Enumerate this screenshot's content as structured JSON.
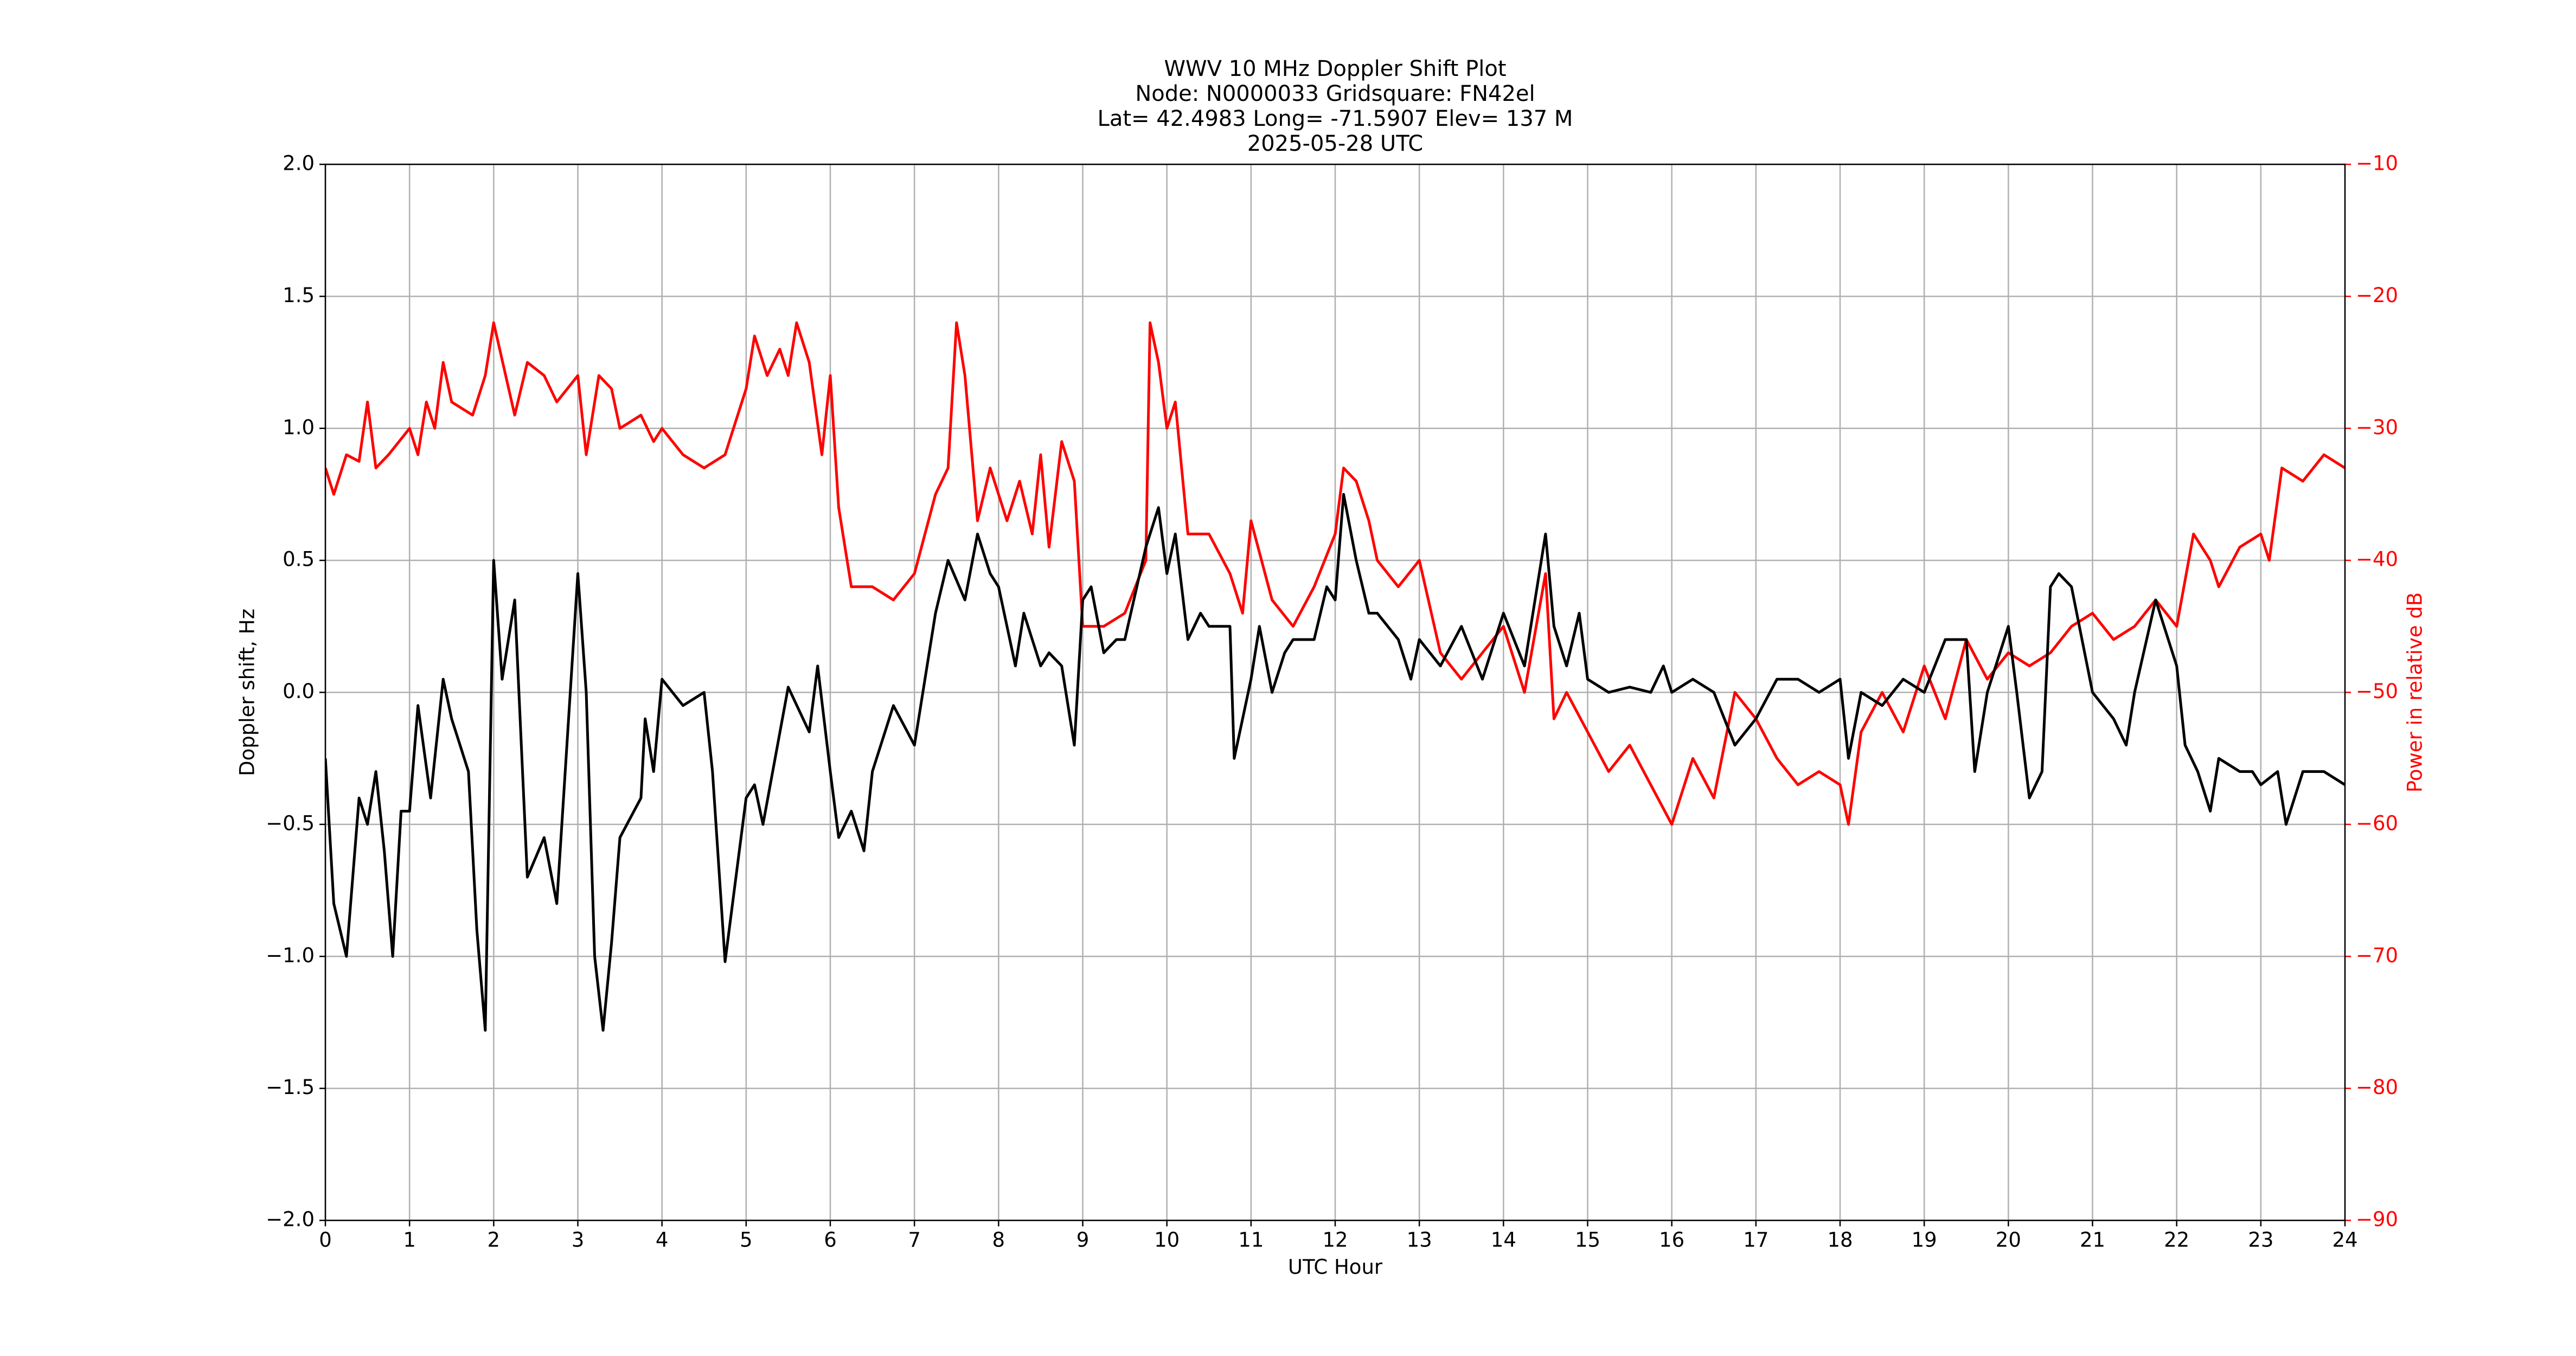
{
  "chart_data": {
    "type": "line",
    "title": [
      "WWV 10 MHz Doppler Shift Plot",
      "Node:  N0000033     Gridsquare:  FN42el",
      "Lat= 42.4983    Long= -71.5907    Elev= 137 M",
      "2025-05-28  UTC"
    ],
    "xlabel": "UTC Hour",
    "ylabel": "Doppler shift, Hz",
    "y2label": "Power in relative dB",
    "xlim": [
      0,
      24
    ],
    "xticks": [
      0,
      1,
      2,
      3,
      4,
      5,
      6,
      7,
      8,
      9,
      10,
      11,
      12,
      13,
      14,
      15,
      16,
      17,
      18,
      19,
      20,
      21,
      22,
      23,
      24
    ],
    "ylim": [
      -2,
      2
    ],
    "yticks": [
      {
        "value": -2,
        "label": "−2.0"
      },
      {
        "value": -1.5,
        "label": "−1.5"
      },
      {
        "value": -1,
        "label": "−1.0"
      },
      {
        "value": -0.5,
        "label": "−0.5"
      },
      {
        "value": 0,
        "label": "0.0"
      },
      0.5,
      {
        "value": 1,
        "label": "1.0"
      },
      1.5,
      {
        "value": 2,
        "label": "2.0"
      }
    ],
    "y2lim": [
      -90,
      -10
    ],
    "y2ticks": [
      {
        "value": -90,
        "label": "−90"
      },
      {
        "value": -80,
        "label": "−80"
      },
      {
        "value": -70,
        "label": "−70"
      },
      {
        "value": -60,
        "label": "−60"
      },
      {
        "value": -50,
        "label": "−50"
      },
      {
        "value": -40,
        "label": "−40"
      },
      {
        "value": -30,
        "label": "−30"
      },
      {
        "value": -20,
        "label": "−20"
      },
      {
        "value": -10,
        "label": "−10"
      }
    ],
    "grid": true,
    "series": [
      {
        "color": "#000000",
        "x": [
          0,
          0.1,
          0.25,
          0.4,
          0.5,
          0.6,
          0.7,
          0.8,
          0.9,
          1.0,
          1.1,
          1.25,
          1.4,
          1.5,
          1.6,
          1.7,
          1.8,
          1.9,
          2.0,
          2.1,
          2.25,
          2.4,
          2.6,
          2.75,
          3.0,
          3.1,
          3.2,
          3.3,
          3.4,
          3.5,
          3.75,
          3.8,
          3.9,
          4.0,
          4.25,
          4.5,
          4.6,
          4.75,
          5.0,
          5.1,
          5.2,
          5.5,
          5.75,
          5.85,
          6.0,
          6.1,
          6.25,
          6.4,
          6.5,
          6.75,
          7.0,
          7.1,
          7.25,
          7.4,
          7.6,
          7.75,
          7.9,
          8.0,
          8.2,
          8.3,
          8.5,
          8.6,
          8.75,
          8.9,
          9.0,
          9.1,
          9.25,
          9.4,
          9.5,
          9.75,
          9.9,
          10.0,
          10.1,
          10.25,
          10.4,
          10.5,
          10.75,
          10.8,
          11.0,
          11.1,
          11.25,
          11.4,
          11.5,
          11.75,
          11.9,
          12.0,
          12.1,
          12.25,
          12.4,
          12.5,
          12.75,
          12.9,
          13.0,
          13.25,
          13.5,
          13.75,
          14.0,
          14.25,
          14.5,
          14.6,
          14.75,
          14.9,
          15.0,
          15.25,
          15.5,
          15.75,
          15.9,
          16.0,
          16.25,
          16.5,
          16.75,
          17.0,
          17.25,
          17.5,
          17.75,
          18.0,
          18.1,
          18.25,
          18.5,
          18.75,
          19.0,
          19.25,
          19.5,
          19.6,
          19.75,
          20.0,
          20.1,
          20.25,
          20.4,
          20.5,
          20.6,
          20.75,
          21.0,
          21.25,
          21.4,
          21.5,
          21.75,
          22.0,
          22.1,
          22.25,
          22.4,
          22.5,
          22.75,
          22.9,
          23.0,
          23.2,
          23.3,
          23.5,
          23.75,
          24.0
        ],
        "values": [
          -0.25,
          -0.8,
          -1.0,
          -0.4,
          -0.5,
          -0.3,
          -0.6,
          -1.0,
          -0.45,
          -0.45,
          -0.05,
          -0.4,
          0.05,
          -0.1,
          -0.2,
          -0.3,
          -0.9,
          -1.28,
          0.5,
          0.05,
          0.35,
          -0.7,
          -0.55,
          -0.8,
          0.45,
          0.0,
          -1.0,
          -1.28,
          -0.95,
          -0.55,
          -0.4,
          -0.1,
          -0.3,
          0.05,
          -0.05,
          0.0,
          -0.3,
          -1.02,
          -0.4,
          -0.35,
          -0.5,
          0.02,
          -0.15,
          0.1,
          -0.3,
          -0.55,
          -0.45,
          -0.6,
          -0.3,
          -0.05,
          -0.2,
          0.0,
          0.3,
          0.5,
          0.35,
          0.6,
          0.45,
          0.4,
          0.1,
          0.3,
          0.1,
          0.15,
          0.1,
          -0.2,
          0.35,
          0.4,
          0.15,
          0.2,
          0.2,
          0.55,
          0.7,
          0.45,
          0.6,
          0.2,
          0.3,
          0.25,
          0.25,
          -0.25,
          0.05,
          0.25,
          0.0,
          0.15,
          0.2,
          0.2,
          0.4,
          0.35,
          0.75,
          0.5,
          0.3,
          0.3,
          0.2,
          0.05,
          0.2,
          0.1,
          0.25,
          0.05,
          0.3,
          0.1,
          0.6,
          0.25,
          0.1,
          0.3,
          0.05,
          0.0,
          0.02,
          0.0,
          0.1,
          0.0,
          0.05,
          0.0,
          -0.2,
          -0.1,
          0.05,
          0.05,
          0.0,
          0.05,
          -0.25,
          0.0,
          -0.05,
          0.05,
          0.0,
          0.2,
          0.2,
          -0.3,
          0.0,
          0.25,
          0.0,
          -0.4,
          -0.3,
          0.4,
          0.45,
          0.4,
          0.0,
          -0.1,
          -0.2,
          0.0,
          0.35,
          0.1,
          -0.2,
          -0.3,
          -0.45,
          -0.25,
          -0.3,
          -0.3,
          -0.35,
          -0.3,
          -0.5,
          -0.3,
          -0.3,
          -0.35
        ]
      },
      {
        "color": "#ff0000",
        "axis": "y2",
        "x": [
          0,
          0.1,
          0.25,
          0.4,
          0.5,
          0.6,
          0.75,
          1.0,
          1.1,
          1.2,
          1.3,
          1.4,
          1.5,
          1.75,
          1.9,
          2.0,
          2.25,
          2.4,
          2.6,
          2.75,
          3.0,
          3.1,
          3.25,
          3.4,
          3.5,
          3.75,
          3.9,
          4.0,
          4.25,
          4.5,
          4.75,
          5.0,
          5.1,
          5.25,
          5.4,
          5.5,
          5.6,
          5.75,
          5.9,
          6.0,
          6.1,
          6.25,
          6.5,
          6.75,
          7.0,
          7.25,
          7.4,
          7.5,
          7.6,
          7.75,
          7.9,
          8.0,
          8.1,
          8.25,
          8.4,
          8.5,
          8.6,
          8.75,
          8.9,
          9.0,
          9.25,
          9.5,
          9.75,
          9.8,
          9.9,
          10.0,
          10.1,
          10.25,
          10.5,
          10.75,
          10.9,
          11.0,
          11.25,
          11.5,
          11.75,
          12.0,
          12.1,
          12.25,
          12.4,
          12.5,
          12.75,
          13.0,
          13.25,
          13.5,
          13.75,
          14.0,
          14.25,
          14.5,
          14.6,
          14.75,
          15.0,
          15.25,
          15.5,
          15.75,
          16.0,
          16.25,
          16.5,
          16.75,
          17.0,
          17.25,
          17.5,
          17.75,
          18.0,
          18.1,
          18.25,
          18.5,
          18.75,
          19.0,
          19.25,
          19.5,
          19.75,
          20.0,
          20.25,
          20.5,
          20.75,
          21.0,
          21.25,
          21.5,
          21.75,
          22.0,
          22.2,
          22.4,
          22.5,
          22.75,
          23.0,
          23.1,
          23.25,
          23.5,
          23.75,
          24.0
        ],
        "values": [
          -33,
          -35,
          -32,
          -32.5,
          -28,
          -33,
          -32,
          -30,
          -32,
          -28,
          -30,
          -25,
          -28,
          -29,
          -26,
          -22,
          -29,
          -25,
          -26,
          -28,
          -26,
          -32,
          -26,
          -27,
          -30,
          -29,
          -31,
          -30,
          -32,
          -33,
          -32,
          -27,
          -23,
          -26,
          -24,
          -26,
          -22,
          -25,
          -32,
          -26,
          -36,
          -42,
          -42,
          -43,
          -41,
          -35,
          -33,
          -22,
          -26,
          -37,
          -33,
          -35,
          -37,
          -34,
          -38,
          -32,
          -39,
          -31,
          -34,
          -45,
          -45,
          -44,
          -40,
          -22,
          -25,
          -30,
          -28,
          -38,
          -38,
          -41,
          -44,
          -37,
          -43,
          -45,
          -42,
          -38,
          -33,
          -34,
          -37,
          -40,
          -42,
          -40,
          -47,
          -49,
          -47,
          -45,
          -50,
          -41,
          -52,
          -50,
          -53,
          -56,
          -54,
          -57,
          -60,
          -55,
          -58,
          -50,
          -52,
          -55,
          -57,
          -56,
          -57,
          -60,
          -53,
          -50,
          -53,
          -48,
          -52,
          -46,
          -49,
          -47,
          -48,
          -47,
          -45,
          -44,
          -46,
          -45,
          -43,
          -45,
          -38,
          -40,
          -42,
          -39,
          -38,
          -40,
          -33,
          -34,
          -32,
          -33
        ]
      }
    ]
  }
}
